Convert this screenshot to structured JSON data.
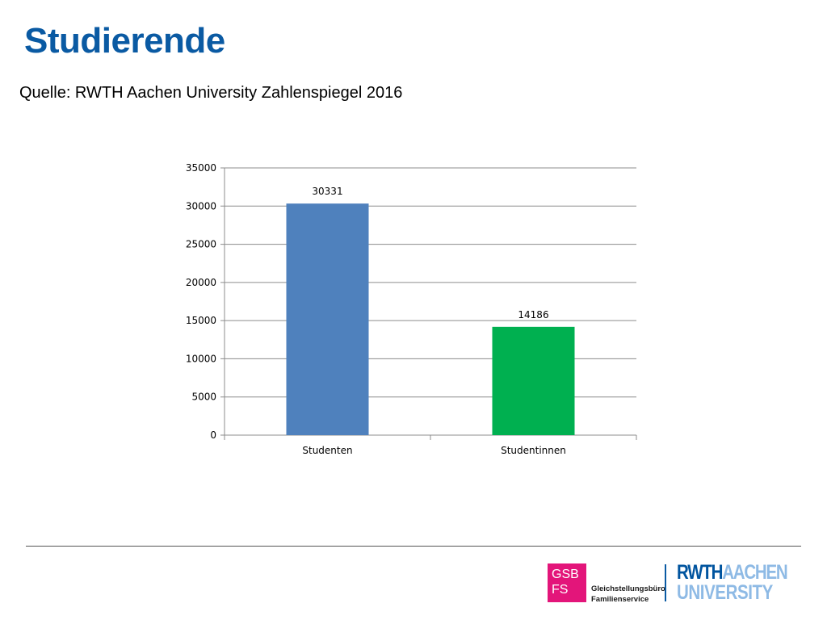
{
  "slide": {
    "title": "Studierende",
    "source": "Quelle: RWTH Aachen University Zahlenspiegel 2016"
  },
  "logos": {
    "gsb_line1": "GSB",
    "gsb_line2": "FS",
    "gsb_name_line1": "Gleichstellungsbüro",
    "gsb_name_line2": "Familienservice",
    "rwth_part1": "RWTH",
    "rwth_part2": "AACHEN",
    "rwth_line2": "UNIVERSITY"
  },
  "colors": {
    "title": "#0a5aa3",
    "gsb_pink": "#e3157a",
    "rwth_blue": "#00549f",
    "rwth_light_blue": "#8ebae5",
    "grid": "#8c8c8c"
  },
  "chart_data": {
    "type": "bar",
    "categories": [
      "Studenten",
      "Studentinnen"
    ],
    "values": [
      30331,
      14186
    ],
    "data_labels": [
      "30331",
      "14186"
    ],
    "bar_colors": [
      "#4f81bd",
      "#00b050"
    ],
    "ylim": [
      0,
      35000
    ],
    "yticks": [
      0,
      5000,
      10000,
      15000,
      20000,
      25000,
      30000,
      35000
    ],
    "ytick_labels": [
      "0",
      "5000",
      "10000",
      "15000",
      "20000",
      "25000",
      "30000",
      "35000"
    ],
    "grid": true,
    "legend": "none"
  }
}
